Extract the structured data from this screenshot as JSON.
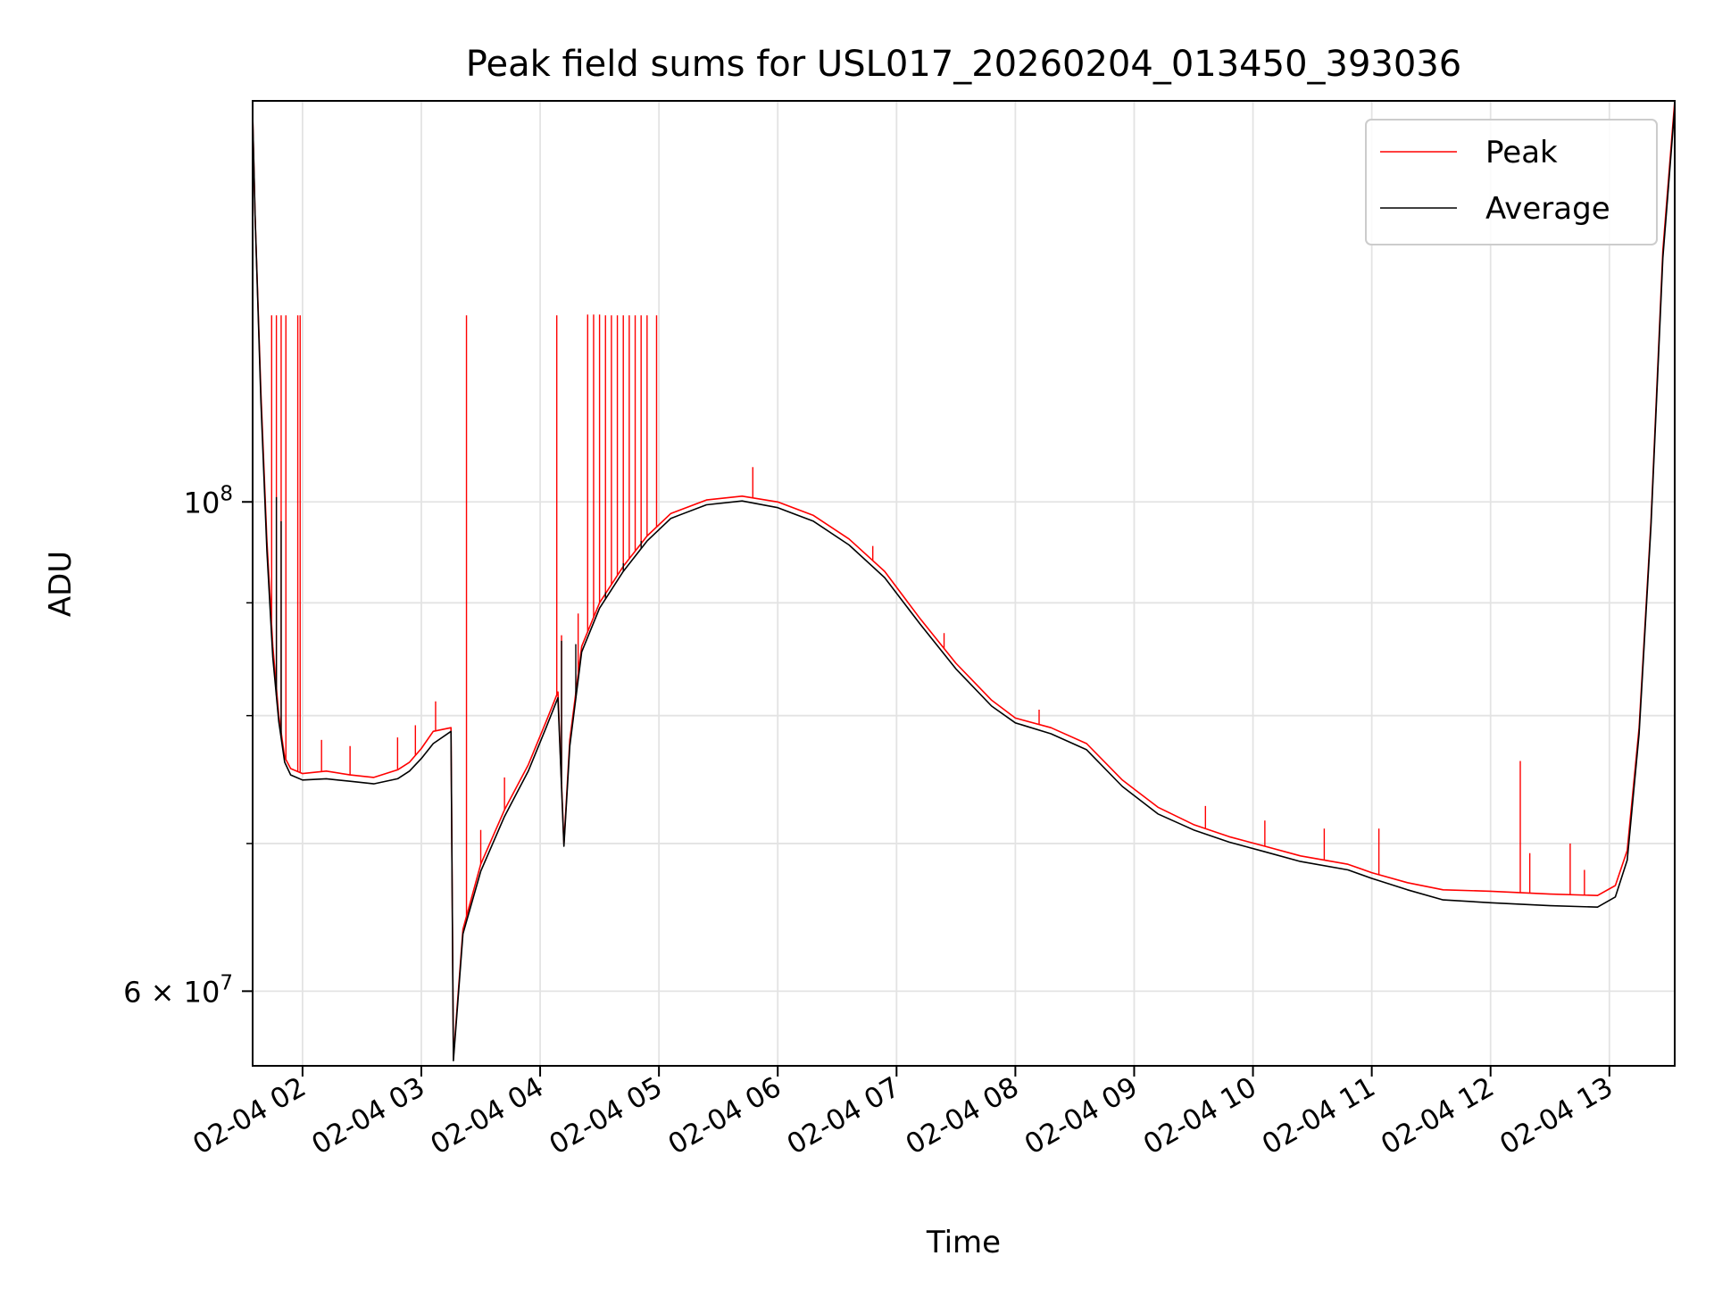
{
  "chart_data": {
    "type": "line",
    "title": "Peak field sums for USL017_20260204_013450_393036",
    "xlabel": "Time",
    "ylabel": "ADU",
    "yscale": "log",
    "xlim": [
      1.58,
      13.55
    ],
    "ylim": [
      55500000,
      152000000
    ],
    "grid": true,
    "legend_position": "upper right",
    "x_ticks": [
      {
        "value": 2,
        "label": "02-04 02"
      },
      {
        "value": 3,
        "label": "02-04 03"
      },
      {
        "value": 4,
        "label": "02-04 04"
      },
      {
        "value": 5,
        "label": "02-04 05"
      },
      {
        "value": 6,
        "label": "02-04 06"
      },
      {
        "value": 7,
        "label": "02-04 07"
      },
      {
        "value": 8,
        "label": "02-04 08"
      },
      {
        "value": 9,
        "label": "02-04 09"
      },
      {
        "value": 10,
        "label": "02-04 10"
      },
      {
        "value": 11,
        "label": "02-04 11"
      },
      {
        "value": 12,
        "label": "02-04 12"
      },
      {
        "value": 13,
        "label": "02-04 13"
      }
    ],
    "y_ticks_major": [
      {
        "value": 60000000,
        "label_base": "6 × 10",
        "label_exp": "7"
      },
      {
        "value": 100000000,
        "label_base": "10",
        "label_exp": "8"
      }
    ],
    "y_ticks_minor": [
      70000000,
      80000000,
      90000000
    ],
    "series": [
      {
        "name": "Peak",
        "color": "#ff0000",
        "points": [
          [
            1.58,
            150000000
          ],
          [
            1.6,
            135000000
          ],
          [
            1.65,
            112000000
          ],
          [
            1.7,
            96000000
          ],
          [
            1.75,
            86000000
          ],
          [
            1.8,
            80000000
          ],
          [
            1.85,
            76600000
          ],
          [
            1.9,
            75700000
          ],
          [
            2.0,
            75300000
          ],
          [
            2.2,
            75500000
          ],
          [
            2.4,
            75200000
          ],
          [
            2.6,
            75000000
          ],
          [
            2.8,
            75600000
          ],
          [
            2.9,
            76200000
          ],
          [
            3.0,
            77300000
          ],
          [
            3.1,
            78700000
          ],
          [
            3.25,
            79000000
          ],
          [
            3.27,
            56000000
          ],
          [
            3.35,
            64000000
          ],
          [
            3.5,
            68500000
          ],
          [
            3.7,
            72500000
          ],
          [
            3.9,
            76000000
          ],
          [
            4.05,
            79500000
          ],
          [
            4.15,
            82000000
          ],
          [
            4.2,
            70000000
          ],
          [
            4.25,
            78000000
          ],
          [
            4.35,
            86000000
          ],
          [
            4.5,
            90000000
          ],
          [
            4.7,
            93500000
          ],
          [
            4.9,
            96500000
          ],
          [
            5.1,
            98800000
          ],
          [
            5.4,
            100200000
          ],
          [
            5.7,
            100600000
          ],
          [
            6.0,
            100000000
          ],
          [
            6.3,
            98600000
          ],
          [
            6.6,
            96200000
          ],
          [
            6.9,
            93000000
          ],
          [
            7.2,
            88500000
          ],
          [
            7.5,
            84500000
          ],
          [
            7.8,
            81300000
          ],
          [
            8.0,
            79800000
          ],
          [
            8.3,
            79000000
          ],
          [
            8.6,
            77700000
          ],
          [
            8.9,
            74800000
          ],
          [
            9.2,
            72700000
          ],
          [
            9.5,
            71400000
          ],
          [
            9.8,
            70500000
          ],
          [
            10.1,
            69800000
          ],
          [
            10.4,
            69100000
          ],
          [
            10.8,
            68500000
          ],
          [
            11.0,
            67900000
          ],
          [
            11.3,
            67200000
          ],
          [
            11.6,
            66700000
          ],
          [
            12.0,
            66600000
          ],
          [
            12.5,
            66400000
          ],
          [
            12.9,
            66300000
          ],
          [
            13.05,
            67000000
          ],
          [
            13.15,
            69500000
          ],
          [
            13.25,
            79000000
          ],
          [
            13.35,
            98000000
          ],
          [
            13.45,
            130000000
          ],
          [
            13.55,
            152000000
          ]
        ],
        "spikes": [
          [
            1.74,
            121500000
          ],
          [
            1.78,
            121500000
          ],
          [
            1.82,
            121500000
          ],
          [
            1.86,
            121500000
          ],
          [
            1.96,
            121500000
          ],
          [
            1.98,
            121500000
          ],
          [
            2.16,
            78000000
          ],
          [
            2.4,
            77500000
          ],
          [
            2.8,
            78200000
          ],
          [
            2.95,
            79200000
          ],
          [
            3.12,
            81200000
          ],
          [
            3.38,
            121500000
          ],
          [
            3.5,
            71000000
          ],
          [
            3.7,
            75000000
          ],
          [
            4.14,
            121500000
          ],
          [
            4.18,
            87000000
          ],
          [
            4.32,
            89000000
          ],
          [
            4.4,
            121600000
          ],
          [
            4.45,
            121600000
          ],
          [
            4.5,
            121600000
          ],
          [
            4.55,
            121500000
          ],
          [
            4.6,
            121500000
          ],
          [
            4.65,
            121500000
          ],
          [
            4.7,
            121500000
          ],
          [
            4.75,
            121500000
          ],
          [
            4.8,
            121500000
          ],
          [
            4.85,
            121500000
          ],
          [
            4.9,
            121500000
          ],
          [
            4.98,
            121500000
          ],
          [
            5.79,
            103700000
          ],
          [
            6.8,
            95500000
          ],
          [
            7.4,
            87200000
          ],
          [
            8.2,
            80500000
          ],
          [
            9.6,
            72800000
          ],
          [
            10.1,
            71700000
          ],
          [
            10.6,
            71100000
          ],
          [
            11.06,
            71100000
          ],
          [
            12.25,
            76300000
          ],
          [
            12.33,
            69300000
          ],
          [
            12.67,
            70000000
          ],
          [
            12.79,
            68100000
          ]
        ]
      },
      {
        "name": "Average",
        "color": "#000000",
        "points": [
          [
            1.58,
            150000000
          ],
          [
            1.6,
            135000000
          ],
          [
            1.65,
            111000000
          ],
          [
            1.7,
            95000000
          ],
          [
            1.75,
            85000000
          ],
          [
            1.8,
            79500000
          ],
          [
            1.85,
            76200000
          ],
          [
            1.9,
            75200000
          ],
          [
            2.0,
            74800000
          ],
          [
            2.2,
            74900000
          ],
          [
            2.4,
            74700000
          ],
          [
            2.6,
            74500000
          ],
          [
            2.8,
            74900000
          ],
          [
            2.9,
            75500000
          ],
          [
            3.0,
            76500000
          ],
          [
            3.1,
            77700000
          ],
          [
            3.25,
            78700000
          ],
          [
            3.27,
            55800000
          ],
          [
            3.35,
            63700000
          ],
          [
            3.5,
            68000000
          ],
          [
            3.7,
            72000000
          ],
          [
            3.9,
            75500000
          ],
          [
            4.05,
            79000000
          ],
          [
            4.15,
            81500000
          ],
          [
            4.2,
            69800000
          ],
          [
            4.25,
            77500000
          ],
          [
            4.35,
            85500000
          ],
          [
            4.5,
            89500000
          ],
          [
            4.7,
            93000000
          ],
          [
            4.9,
            96000000
          ],
          [
            5.1,
            98300000
          ],
          [
            5.4,
            99700000
          ],
          [
            5.7,
            100100000
          ],
          [
            6.0,
            99400000
          ],
          [
            6.3,
            98000000
          ],
          [
            6.6,
            95600000
          ],
          [
            6.9,
            92400000
          ],
          [
            7.2,
            88000000
          ],
          [
            7.5,
            84000000
          ],
          [
            7.8,
            80800000
          ],
          [
            8.0,
            79400000
          ],
          [
            8.3,
            78500000
          ],
          [
            8.6,
            77200000
          ],
          [
            8.9,
            74300000
          ],
          [
            9.2,
            72200000
          ],
          [
            9.5,
            71000000
          ],
          [
            9.8,
            70100000
          ],
          [
            10.1,
            69400000
          ],
          [
            10.4,
            68700000
          ],
          [
            10.8,
            68100000
          ],
          [
            11.0,
            67500000
          ],
          [
            11.3,
            66700000
          ],
          [
            11.6,
            66000000
          ],
          [
            12.0,
            65800000
          ],
          [
            12.5,
            65600000
          ],
          [
            12.9,
            65500000
          ],
          [
            13.05,
            66200000
          ],
          [
            13.15,
            68800000
          ],
          [
            13.25,
            78500000
          ],
          [
            13.35,
            97500000
          ],
          [
            13.45,
            129000000
          ],
          [
            13.55,
            151000000
          ]
        ],
        "spikes": [
          [
            1.78,
            100500000
          ],
          [
            1.82,
            98000000
          ],
          [
            4.18,
            86500000
          ],
          [
            4.3,
            86200000
          ],
          [
            4.55,
            91000000
          ],
          [
            4.7,
            93800000
          ],
          [
            4.85,
            96000000
          ]
        ]
      }
    ]
  }
}
